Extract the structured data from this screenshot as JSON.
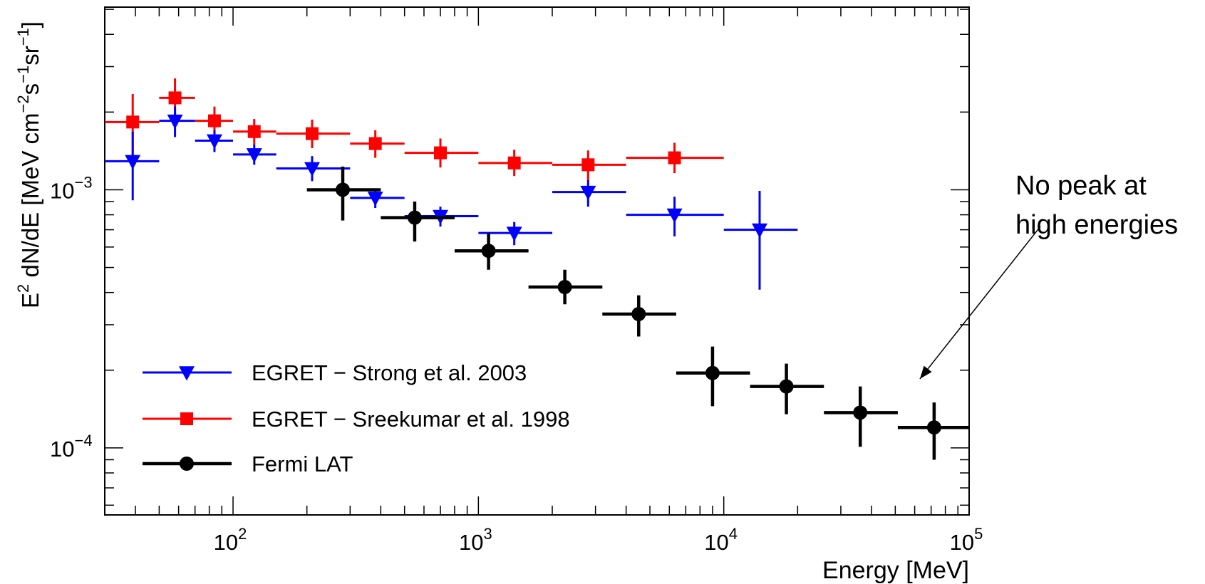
{
  "chart_data": {
    "type": "scatter",
    "title": "",
    "xlabel": "Energy [MeV]",
    "ylabel": {
      "base": "E",
      "sup1": "2",
      "mid1": " dN/dE [MeV cm",
      "sup2": "−2",
      "mid2": "s",
      "sup3": "−1",
      "mid3": "sr",
      "sup4": "−1",
      "end": "]"
    },
    "x_scale": "log",
    "y_scale": "log",
    "xlim": [
      30,
      100000
    ],
    "ylim": [
      5.5e-05,
      0.0051
    ],
    "grid": false,
    "legend_position": "bottom-left",
    "x_tick_labels": [
      {
        "value": 100,
        "base": "10",
        "exp": "2"
      },
      {
        "value": 1000,
        "base": "10",
        "exp": "3"
      },
      {
        "value": 10000,
        "base": "10",
        "exp": "4"
      },
      {
        "value": 100000,
        "base": "10",
        "exp": "5"
      }
    ],
    "y_tick_labels": [
      {
        "value": 0.001,
        "base": "10",
        "exp": "−3"
      },
      {
        "value": 0.0001,
        "base": "10",
        "exp": "−4"
      }
    ],
    "series": [
      {
        "name": "EGRET − Strong et al. 2003",
        "color": "#0000ff",
        "marker": "triangle-down",
        "points": [
          {
            "x": 39,
            "xlo": 30,
            "xhi": 50,
            "y": 0.00129,
            "ylo": 0.00091,
            "yhi": 0.00168
          },
          {
            "x": 58,
            "xlo": 50,
            "xhi": 70,
            "y": 0.00185,
            "ylo": 0.0016,
            "yhi": 0.0021
          },
          {
            "x": 84,
            "xlo": 70,
            "xhi": 100,
            "y": 0.00155,
            "ylo": 0.0014,
            "yhi": 0.0017
          },
          {
            "x": 122,
            "xlo": 100,
            "xhi": 150,
            "y": 0.00137,
            "ylo": 0.00125,
            "yhi": 0.0015
          },
          {
            "x": 210,
            "xlo": 150,
            "xhi": 300,
            "y": 0.00121,
            "ylo": 0.00108,
            "yhi": 0.00135
          },
          {
            "x": 380,
            "xlo": 300,
            "xhi": 500,
            "y": 0.00093,
            "ylo": 0.00085,
            "yhi": 0.00101
          },
          {
            "x": 700,
            "xlo": 500,
            "xhi": 1000,
            "y": 0.00079,
            "ylo": 0.00072,
            "yhi": 0.00086
          },
          {
            "x": 1400,
            "xlo": 1000,
            "xhi": 2000,
            "y": 0.00068,
            "ylo": 0.00061,
            "yhi": 0.00075
          },
          {
            "x": 2800,
            "xlo": 2000,
            "xhi": 4000,
            "y": 0.00098,
            "ylo": 0.00086,
            "yhi": 0.00109
          },
          {
            "x": 6300,
            "xlo": 4000,
            "xhi": 10000,
            "y": 0.0008,
            "ylo": 0.00066,
            "yhi": 0.00094
          },
          {
            "x": 14000,
            "xlo": 10000,
            "xhi": 20000,
            "y": 0.0007,
            "ylo": 0.00041,
            "yhi": 0.00099
          }
        ]
      },
      {
        "name": "EGRET − Sreekumar et al. 1998",
        "color": "#ff0000",
        "marker": "square",
        "points": [
          {
            "x": 39,
            "xlo": 30,
            "xhi": 50,
            "y": 0.00183,
            "ylo": 0.00135,
            "yhi": 0.00235
          },
          {
            "x": 58,
            "xlo": 50,
            "xhi": 70,
            "y": 0.00227,
            "ylo": 0.0019,
            "yhi": 0.0027
          },
          {
            "x": 84,
            "xlo": 70,
            "xhi": 100,
            "y": 0.00185,
            "ylo": 0.00165,
            "yhi": 0.0021
          },
          {
            "x": 122,
            "xlo": 100,
            "xhi": 150,
            "y": 0.00168,
            "ylo": 0.0015,
            "yhi": 0.00188
          },
          {
            "x": 210,
            "xlo": 150,
            "xhi": 300,
            "y": 0.00165,
            "ylo": 0.00145,
            "yhi": 0.00187
          },
          {
            "x": 380,
            "xlo": 300,
            "xhi": 500,
            "y": 0.00151,
            "ylo": 0.00133,
            "yhi": 0.0017
          },
          {
            "x": 700,
            "xlo": 500,
            "xhi": 1000,
            "y": 0.00139,
            "ylo": 0.00122,
            "yhi": 0.00158
          },
          {
            "x": 1400,
            "xlo": 1000,
            "xhi": 2000,
            "y": 0.00127,
            "ylo": 0.00113,
            "yhi": 0.00143
          },
          {
            "x": 2800,
            "xlo": 2000,
            "xhi": 4000,
            "y": 0.00125,
            "ylo": 0.00108,
            "yhi": 0.00142
          },
          {
            "x": 6300,
            "xlo": 4000,
            "xhi": 10000,
            "y": 0.00133,
            "ylo": 0.00116,
            "yhi": 0.00152
          }
        ]
      },
      {
        "name": "Fermi LAT",
        "color": "#000000",
        "marker": "circle",
        "points": [
          {
            "x": 280,
            "xlo": 200,
            "xhi": 400,
            "y": 0.001,
            "ylo": 0.00076,
            "yhi": 0.00123
          },
          {
            "x": 550,
            "xlo": 400,
            "xhi": 800,
            "y": 0.00078,
            "ylo": 0.00063,
            "yhi": 0.0009
          },
          {
            "x": 1100,
            "xlo": 800,
            "xhi": 1600,
            "y": 0.00058,
            "ylo": 0.00049,
            "yhi": 0.00068
          },
          {
            "x": 2250,
            "xlo": 1600,
            "xhi": 3200,
            "y": 0.00042,
            "ylo": 0.00036,
            "yhi": 0.00049
          },
          {
            "x": 4500,
            "xlo": 3200,
            "xhi": 6400,
            "y": 0.00033,
            "ylo": 0.00027,
            "yhi": 0.00039
          },
          {
            "x": 9000,
            "xlo": 6400,
            "xhi": 12800,
            "y": 0.000195,
            "ylo": 0.000145,
            "yhi": 0.000247
          },
          {
            "x": 18000,
            "xlo": 12800,
            "xhi": 25600,
            "y": 0.000173,
            "ylo": 0.000135,
            "yhi": 0.000212
          },
          {
            "x": 36000,
            "xlo": 25600,
            "xhi": 51200,
            "y": 0.000137,
            "ylo": 0.000101,
            "yhi": 0.000173
          },
          {
            "x": 72000,
            "xlo": 51200,
            "xhi": 100000,
            "y": 0.00012,
            "ylo": 9e-05,
            "yhi": 0.00015
          }
        ]
      }
    ],
    "annotation": {
      "lines": [
        "No peak at",
        "high energies"
      ],
      "arrow_to": {
        "x": 63000,
        "y": 0.000185
      }
    }
  }
}
